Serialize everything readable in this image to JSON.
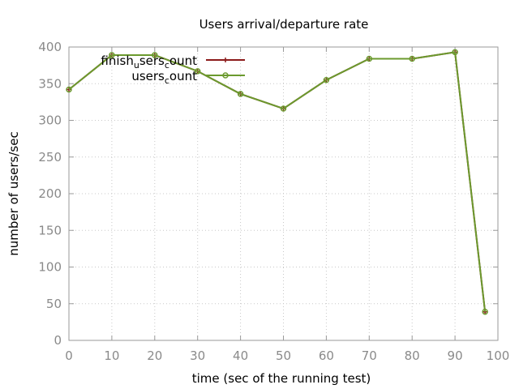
{
  "chart_data": {
    "type": "line",
    "title": "Users arrival/departure rate",
    "xlabel": "time (sec of the running test)",
    "ylabel": "number of users/sec",
    "xlim": [
      0,
      100
    ],
    "ylim": [
      0,
      400
    ],
    "xticks": [
      0,
      10,
      20,
      30,
      40,
      50,
      60,
      70,
      80,
      90,
      100
    ],
    "yticks": [
      0,
      50,
      100,
      150,
      200,
      250,
      300,
      350,
      400
    ],
    "grid": true,
    "legend_position": "top-left",
    "x": [
      0,
      10,
      20,
      30,
      40,
      50,
      60,
      70,
      80,
      90,
      97
    ],
    "series": [
      {
        "name_main": "finish",
        "name_sub1": "u",
        "name_mid": "sers",
        "name_sub2": "c",
        "name_end": "ount",
        "color": "#8b1a1a",
        "marker": "plus",
        "values": [
          342,
          389,
          389,
          367,
          336,
          316,
          355,
          384,
          384,
          393,
          39
        ]
      },
      {
        "name_main": "users",
        "name_sub1": "c",
        "name_end": "ount",
        "color": "#6b9a2e",
        "marker": "circle",
        "values": [
          342,
          389,
          389,
          367,
          336,
          316,
          355,
          384,
          384,
          393,
          39
        ]
      }
    ]
  }
}
